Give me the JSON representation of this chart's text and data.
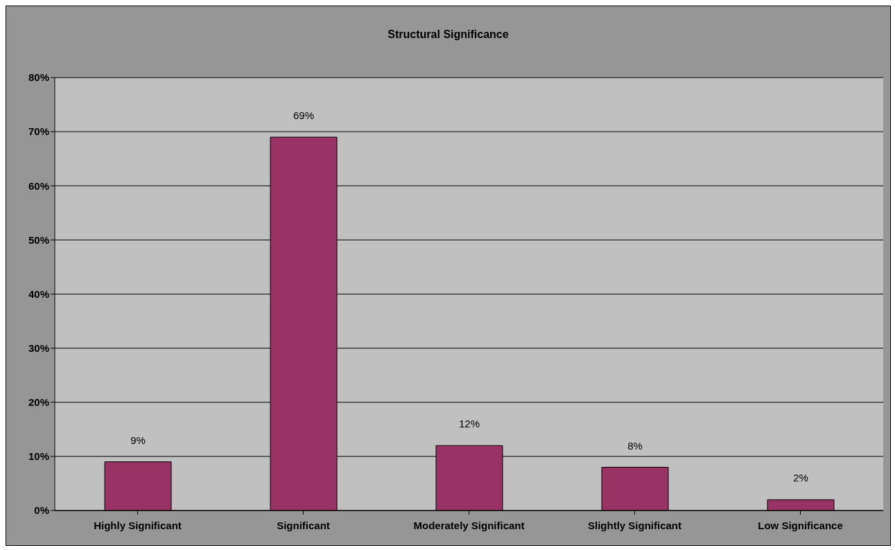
{
  "chart_data": {
    "type": "bar",
    "title": "Structural Significance",
    "categories": [
      "Highly Significant",
      "Significant",
      "Moderately Significant",
      "Slightly Significant",
      "Low Significance"
    ],
    "values": [
      9,
      69,
      12,
      8,
      2
    ],
    "value_labels": [
      "9%",
      "69%",
      "12%",
      "8%",
      "2%"
    ],
    "color": "#993366",
    "ylim": [
      0,
      80
    ],
    "yticks": [
      {
        "value": 0,
        "label": "0%"
      },
      {
        "value": 10,
        "label": "10%"
      },
      {
        "value": 20,
        "label": "20%"
      },
      {
        "value": 30,
        "label": "30%"
      },
      {
        "value": 40,
        "label": "40%"
      },
      {
        "value": 50,
        "label": "50%"
      },
      {
        "value": 60,
        "label": "60%"
      },
      {
        "value": 70,
        "label": "70%"
      },
      {
        "value": 80,
        "label": "80%"
      }
    ],
    "grid": "y",
    "legend": false
  }
}
